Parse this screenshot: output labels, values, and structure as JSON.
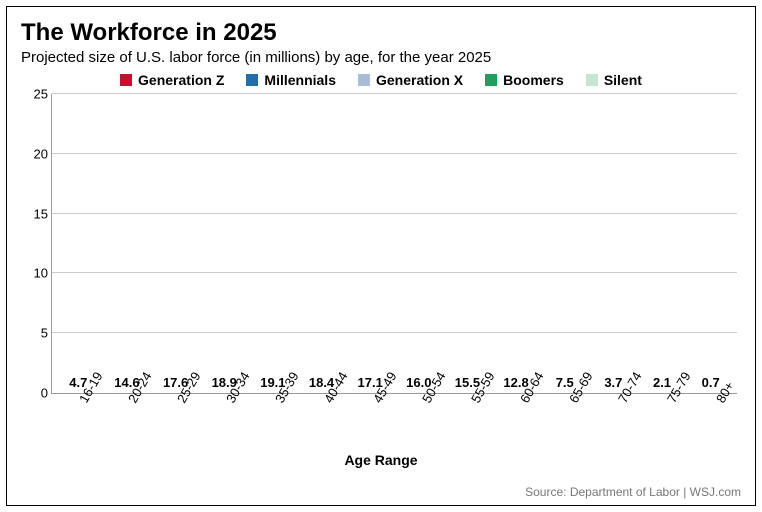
{
  "title": "The Workforce in 2025",
  "subtitle": "Projected size of U.S. labor force (in millions) by age, for the year 2025",
  "xaxis_title": "Age Range",
  "source": "Source: Department of Labor  |  WSJ.com",
  "chart": {
    "type": "bar",
    "ylim": [
      0,
      25
    ],
    "ytick_step": 5,
    "yticks": [
      "0",
      "5",
      "10",
      "15",
      "20",
      "25"
    ],
    "grid_color": "#cccccc",
    "axis_color": "#999999",
    "background": "#ffffff",
    "bar_width_pct": 84,
    "value_fontsize": 13,
    "title_fontsize": 24,
    "subtitle_fontsize": 15
  },
  "legend": [
    {
      "label": "Generation Z",
      "color": "#c8102e"
    },
    {
      "label": "Millennials",
      "color": "#1f6fa8"
    },
    {
      "label": "Generation X",
      "color": "#a7bdd6"
    },
    {
      "label": "Boomers",
      "color": "#1f9e5f"
    },
    {
      "label": "Silent",
      "color": "#c6e6d5"
    }
  ],
  "bars": [
    {
      "label": "16-19",
      "value": 4.7,
      "color": "#c8102e"
    },
    {
      "label": "20-24",
      "value": 14.6,
      "color": "#c8102e"
    },
    {
      "label": "25-29",
      "value": 17.6,
      "color": "#1f6fa8"
    },
    {
      "label": "30-34",
      "value": 18.9,
      "color": "#1f6fa8"
    },
    {
      "label": "35-39",
      "value": 19.1,
      "color": "#1f6fa8"
    },
    {
      "label": "40-44",
      "value": 18.4,
      "color": "#1f6fa8"
    },
    {
      "label": "45-49",
      "value": 17.1,
      "color": "#a7bdd6"
    },
    {
      "label": "50-54",
      "value": 16.0,
      "color": "#a7bdd6"
    },
    {
      "label": "55-59",
      "value": 15.5,
      "color": "#a7bdd6"
    },
    {
      "label": "60-64",
      "value": 12.8,
      "color": "#1f9e5f"
    },
    {
      "label": "65-69",
      "value": 7.5,
      "color": "#1f9e5f"
    },
    {
      "label": "70-74",
      "value": 3.7,
      "color": "#1f9e5f"
    },
    {
      "label": "75-79",
      "value": 2.1,
      "color": "#1f9e5f"
    },
    {
      "label": "80+",
      "value": 0.7,
      "color": "#c6e6d5"
    }
  ]
}
